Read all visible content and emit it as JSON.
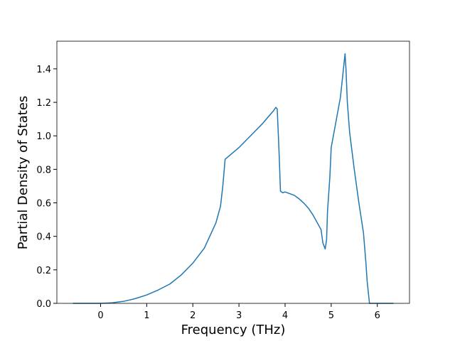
{
  "chart_data": {
    "type": "line",
    "xlabel": "Frequency (THz)",
    "ylabel": "Partial Density of States",
    "x": [
      -0.6,
      -0.3,
      0,
      0.25,
      0.5,
      0.75,
      1,
      1.25,
      1.5,
      1.75,
      2,
      2.25,
      2.5,
      2.6,
      2.65,
      2.7,
      3.0,
      3.25,
      3.5,
      3.75,
      3.8,
      3.83,
      3.87,
      3.9,
      3.95,
      4.0,
      4.1,
      4.2,
      4.3,
      4.4,
      4.5,
      4.6,
      4.7,
      4.78,
      4.82,
      4.87,
      4.9,
      4.92,
      4.97,
      5.0,
      5.1,
      5.2,
      5.3,
      5.32,
      5.35,
      5.4,
      5.5,
      5.6,
      5.7,
      5.75,
      5.78,
      5.83,
      6.0,
      6.35
    ],
    "series": [
      {
        "color": "#1f77b4",
        "values": [
          0,
          0,
          0,
          0.003,
          0.012,
          0.028,
          0.05,
          0.08,
          0.115,
          0.17,
          0.24,
          0.33,
          0.48,
          0.58,
          0.7,
          0.86,
          0.93,
          1.0,
          1.07,
          1.15,
          1.17,
          1.16,
          0.9,
          0.67,
          0.66,
          0.665,
          0.655,
          0.645,
          0.625,
          0.6,
          0.57,
          0.53,
          0.48,
          0.44,
          0.36,
          0.325,
          0.38,
          0.55,
          0.75,
          0.93,
          1.08,
          1.23,
          1.49,
          1.4,
          1.2,
          1.02,
          0.8,
          0.6,
          0.42,
          0.25,
          0.13,
          0,
          0,
          0
        ]
      }
    ],
    "xlim": [
      -0.9475,
      6.6975
    ],
    "ylim": [
      0,
      1.565
    ],
    "xticks": [
      0,
      1,
      2,
      3,
      4,
      5,
      6
    ],
    "yticks": [
      {
        "value": 0,
        "label": "0.0"
      },
      {
        "value": 0.2,
        "label": "0.2"
      },
      {
        "value": 0.4,
        "label": "0.4"
      },
      {
        "value": 0.6,
        "label": "0.6"
      },
      {
        "value": 0.8,
        "label": "0.8"
      },
      {
        "value": 1.0,
        "label": "1.0"
      },
      {
        "value": 1.2,
        "label": "1.2"
      },
      {
        "value": 1.4,
        "label": "1.4"
      }
    ],
    "grid": false
  }
}
